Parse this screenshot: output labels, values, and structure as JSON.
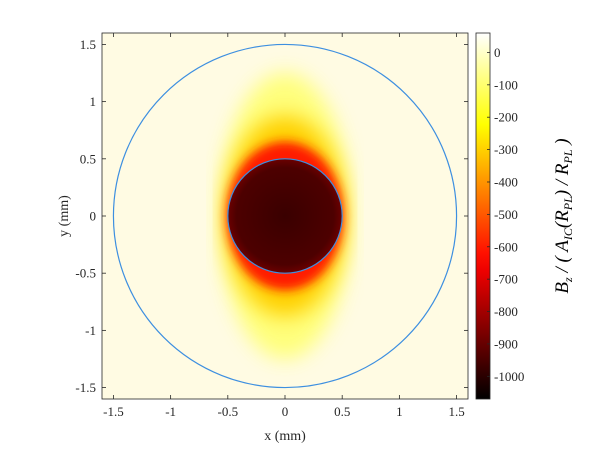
{
  "chart_data": {
    "type": "heatmap",
    "title": "",
    "xlabel": "x (mm)",
    "ylabel": "y (mm)",
    "xlim": [
      -1.6,
      1.6
    ],
    "ylim": [
      -1.6,
      1.6
    ],
    "x_ticks": [
      -1.5,
      -1,
      -0.5,
      0,
      0.5,
      1,
      1.5
    ],
    "x_tick_labels": [
      "-1.5",
      "-1",
      "-0.5",
      "0",
      "0.5",
      "1",
      "1.5"
    ],
    "y_ticks": [
      1.5,
      1,
      0.5,
      0,
      -0.5,
      -1,
      -1.5
    ],
    "y_tick_labels": [
      "1.5",
      "1",
      "0.5",
      "0",
      "-0.5",
      "-1",
      "-1.5"
    ],
    "colorbar": {
      "min": -1070,
      "max": 60,
      "ticks": [
        0,
        -100,
        -200,
        -300,
        -400,
        -500,
        -600,
        -700,
        -800,
        -900,
        -1000
      ],
      "tick_labels": [
        "0",
        "-100",
        "-200",
        "-300",
        "-400",
        "-500",
        "-600",
        "-700",
        "-800",
        "-900",
        "-1000"
      ],
      "label_main_B": "B",
      "label_sub_z": "z",
      "label_mid": " / ( A",
      "label_sub_IC": "IC",
      "label_open": "(R",
      "label_sub_PL1": "PL",
      "label_close": ") / R",
      "label_sub_PL2": "PL",
      "label_end": " )",
      "colormap": "hot"
    },
    "circles": [
      {
        "name": "inner",
        "radius": 0.5,
        "color": "#3d8fe0"
      },
      {
        "name": "outer",
        "radius": 1.5,
        "color": "#3d8fe0"
      }
    ],
    "field": {
      "inner_value": -1050,
      "outer_value": 0,
      "description_values": {
        "near_edge_top_bottom": -600,
        "far_field": 30
      }
    }
  }
}
